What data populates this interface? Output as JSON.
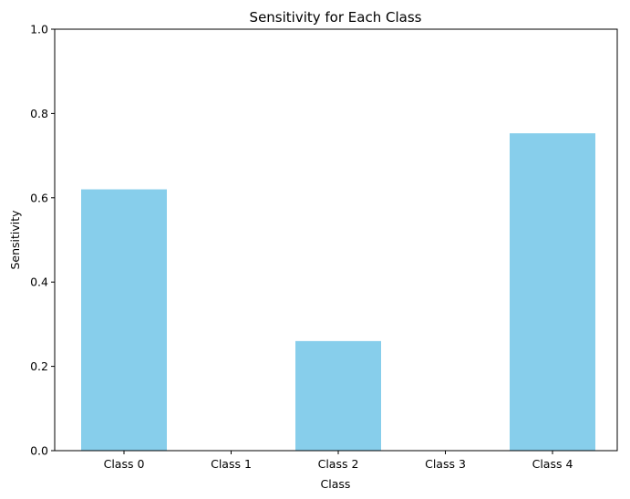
{
  "chart_data": {
    "type": "bar",
    "title": "Sensitivity for Each Class",
    "xlabel": "Class",
    "ylabel": "Sensitivity",
    "categories": [
      "Class 0",
      "Class 1",
      "Class 2",
      "Class 3",
      "Class 4"
    ],
    "values": [
      0.62,
      0.0,
      0.26,
      0.0,
      0.753
    ],
    "ylim": [
      0,
      1
    ],
    "yticks": [
      "0.0",
      "0.2",
      "0.4",
      "0.6",
      "0.8",
      "1.0"
    ],
    "bar_color": "#87ceeb",
    "grid": false,
    "legend": "none"
  }
}
